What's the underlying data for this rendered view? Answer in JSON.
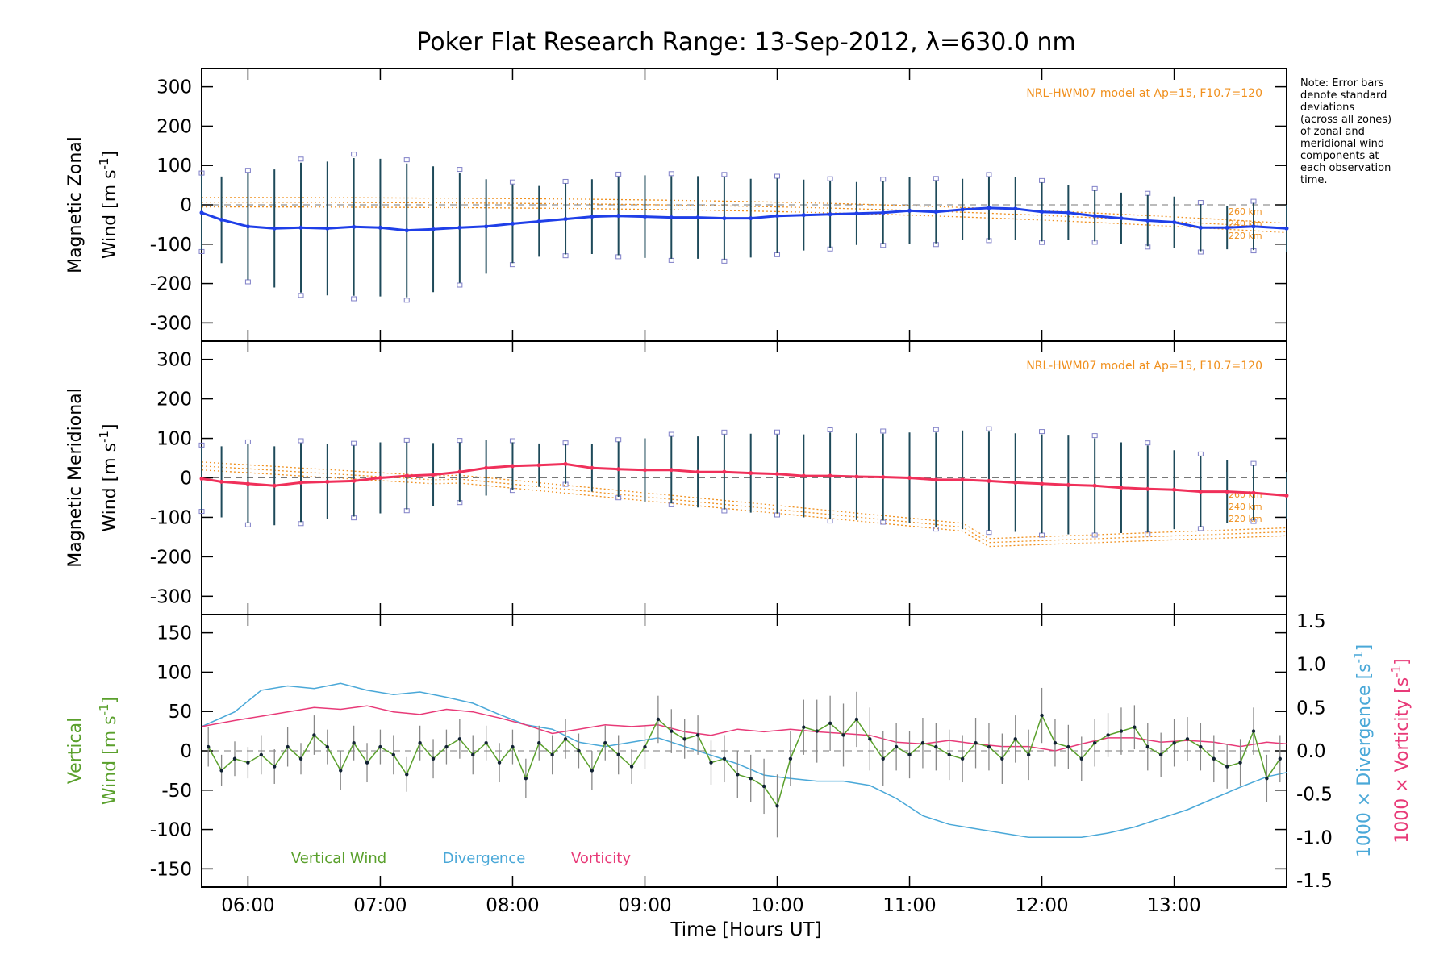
{
  "figure": {
    "title": "Poker Flat Research Range: 13-Sep-2012, λ=630.0 nm",
    "note": "Note: Error bars\ndenote standard\ndeviations\n(across all zones)\nof zonal and\nmeridional wind\ncomponents at\neach observation\ntime.",
    "xlabel": "Time [Hours UT]",
    "x_ticks": [
      "06:00",
      "07:00",
      "08:00",
      "09:00",
      "10:00",
      "11:00",
      "12:00",
      "13:00"
    ],
    "colors": {
      "zonal": "#1f3fe8",
      "meridional": "#f0305a",
      "vertical": "#5aa02c",
      "divergence": "#4aa8d8",
      "vorticity": "#e83a78",
      "model": "#f0901e",
      "errorbar": "#1e4a5a",
      "scatter": "#8080c8"
    }
  },
  "chart_data": [
    {
      "type": "line",
      "name": "zonal",
      "title": "",
      "ylabel_line1": "Magnetic Zonal",
      "ylabel_line2": "Wind [m s",
      "ylabel_sup": "-1",
      "ylabel_close": "]",
      "model_label": "NRL-HWM07 model at Ap=15, F10.7=120",
      "model_altitudes": [
        "260 km",
        "240 km",
        "220 km"
      ],
      "ylim": [
        -330,
        330
      ],
      "y_ticks": [
        300,
        200,
        100,
        0,
        -100,
        -200,
        -300
      ],
      "xlim": [
        5.65,
        13.85
      ],
      "x": [
        5.65,
        5.8,
        6.0,
        6.2,
        6.4,
        6.6,
        6.8,
        7.0,
        7.2,
        7.4,
        7.6,
        7.8,
        8.0,
        8.2,
        8.4,
        8.6,
        8.8,
        9.0,
        9.2,
        9.4,
        9.6,
        9.8,
        10.0,
        10.2,
        10.4,
        10.6,
        10.8,
        11.0,
        11.2,
        11.4,
        11.6,
        11.8,
        12.0,
        12.2,
        12.4,
        12.6,
        12.8,
        13.0,
        13.2,
        13.4,
        13.6,
        13.85
      ],
      "values": [
        -20,
        -38,
        -55,
        -60,
        -58,
        -60,
        -56,
        -58,
        -65,
        -62,
        -58,
        -55,
        -48,
        -42,
        -36,
        -30,
        -28,
        -30,
        -32,
        -32,
        -34,
        -34,
        -28,
        -26,
        -24,
        -22,
        -20,
        -15,
        -18,
        -12,
        -8,
        -10,
        -18,
        -20,
        -28,
        -34,
        -40,
        -44,
        -58,
        -58,
        -55,
        -60
      ],
      "errors": [
        95,
        110,
        135,
        150,
        165,
        170,
        175,
        175,
        170,
        160,
        140,
        120,
        100,
        90,
        90,
        95,
        100,
        105,
        105,
        105,
        105,
        100,
        95,
        90,
        85,
        80,
        80,
        85,
        80,
        78,
        80,
        80,
        75,
        70,
        65,
        65,
        65,
        65,
        60,
        55,
        60,
        60
      ]
    },
    {
      "type": "line",
      "name": "meridional",
      "title": "",
      "ylabel_line1": "Magnetic Meridional",
      "ylabel_line2": "Wind [m s",
      "ylabel_sup": "-1",
      "ylabel_close": "]",
      "model_label": "NRL-HWM07 model at Ap=15, F10.7=120",
      "model_altitudes": [
        "260 km",
        "240 km",
        "220 km"
      ],
      "ylim": [
        -330,
        330
      ],
      "y_ticks": [
        300,
        200,
        100,
        0,
        -100,
        -200,
        -300
      ],
      "xlim": [
        5.65,
        13.85
      ],
      "x": [
        5.65,
        5.8,
        6.0,
        6.2,
        6.4,
        6.6,
        6.8,
        7.0,
        7.2,
        7.4,
        7.6,
        7.8,
        8.0,
        8.2,
        8.4,
        8.6,
        8.8,
        9.0,
        9.2,
        9.4,
        9.6,
        9.8,
        10.0,
        10.2,
        10.4,
        10.6,
        10.8,
        11.0,
        11.2,
        11.4,
        11.6,
        11.8,
        12.0,
        12.2,
        12.4,
        12.6,
        12.8,
        13.0,
        13.2,
        13.4,
        13.6,
        13.85
      ],
      "values": [
        -2,
        -10,
        -15,
        -20,
        -12,
        -10,
        -8,
        0,
        5,
        8,
        15,
        25,
        30,
        32,
        35,
        25,
        22,
        20,
        20,
        15,
        15,
        12,
        10,
        5,
        5,
        3,
        2,
        0,
        -5,
        -5,
        -8,
        -12,
        -15,
        -18,
        -20,
        -25,
        -28,
        -30,
        -35,
        -35,
        -38,
        -45
      ],
      "errors": [
        80,
        90,
        100,
        100,
        100,
        95,
        90,
        90,
        85,
        80,
        75,
        70,
        60,
        55,
        50,
        60,
        70,
        80,
        85,
        90,
        95,
        100,
        100,
        105,
        110,
        110,
        110,
        115,
        120,
        125,
        125,
        125,
        125,
        125,
        120,
        115,
        110,
        100,
        90,
        80,
        70,
        60
      ]
    },
    {
      "type": "line",
      "name": "vertical",
      "title": "",
      "ylabel_line1": "Vertical",
      "ylabel_line2": "Wind [m s",
      "ylabel_sup": "-1",
      "ylabel_close": "]",
      "ylim": [
        -165,
        165
      ],
      "y_ticks": [
        150,
        100,
        50,
        0,
        -50,
        -100,
        -150
      ],
      "y2lim": [
        -1.5,
        1.5
      ],
      "y2_ticks": [
        "1.5",
        "1.0",
        "0.5",
        "0.0",
        "-0.5",
        "-1.0",
        "-1.5"
      ],
      "y2label_div": "1000 × Divergence [s",
      "y2label_vort": "1000 × Vorticity [s",
      "legend": [
        "Vertical Wind",
        "Divergence",
        "Vorticity"
      ],
      "xlim": [
        5.65,
        13.85
      ],
      "series": [
        {
          "name": "Vertical Wind",
          "x": [
            5.7,
            5.8,
            5.9,
            6.0,
            6.1,
            6.2,
            6.3,
            6.4,
            6.5,
            6.6,
            6.7,
            6.8,
            6.9,
            7.0,
            7.1,
            7.2,
            7.3,
            7.4,
            7.5,
            7.6,
            7.7,
            7.8,
            7.9,
            8.0,
            8.1,
            8.2,
            8.3,
            8.4,
            8.5,
            8.6,
            8.7,
            8.8,
            8.9,
            9.0,
            9.1,
            9.2,
            9.3,
            9.4,
            9.5,
            9.6,
            9.7,
            9.8,
            9.9,
            10.0,
            10.1,
            10.2,
            10.3,
            10.4,
            10.5,
            10.6,
            10.7,
            10.8,
            10.9,
            11.0,
            11.1,
            11.2,
            11.3,
            11.4,
            11.5,
            11.6,
            11.7,
            11.8,
            11.9,
            12.0,
            12.1,
            12.2,
            12.3,
            12.4,
            12.5,
            12.6,
            12.7,
            12.8,
            12.9,
            13.0,
            13.1,
            13.2,
            13.3,
            13.4,
            13.5,
            13.6,
            13.7,
            13.8
          ],
          "values": [
            5,
            -25,
            -10,
            -15,
            -5,
            -20,
            5,
            -10,
            20,
            5,
            -25,
            10,
            -15,
            5,
            -5,
            -30,
            10,
            -10,
            5,
            15,
            -5,
            10,
            -15,
            5,
            -35,
            10,
            -5,
            15,
            0,
            -25,
            10,
            -5,
            -20,
            5,
            40,
            25,
            15,
            20,
            -15,
            -10,
            -30,
            -35,
            -45,
            -70,
            -10,
            30,
            25,
            35,
            20,
            40,
            15,
            -10,
            5,
            -5,
            10,
            5,
            -5,
            -10,
            10,
            5,
            -10,
            15,
            -5,
            45,
            10,
            5,
            -10,
            10,
            20,
            25,
            30,
            5,
            -5,
            10,
            15,
            5,
            -10,
            -20,
            -15,
            25,
            -35,
            -10
          ],
          "errors": [
            25,
            20,
            22,
            20,
            25,
            22,
            25,
            20,
            25,
            22,
            25,
            22,
            25,
            22,
            25,
            22,
            22,
            25,
            22,
            25,
            25,
            22,
            25,
            22,
            25,
            22,
            25,
            25,
            22,
            25,
            22,
            25,
            22,
            28,
            30,
            28,
            25,
            25,
            28,
            30,
            30,
            30,
            35,
            40,
            35,
            35,
            40,
            35,
            40,
            35,
            40,
            35,
            30,
            30,
            32,
            30,
            32,
            30,
            32,
            30,
            32,
            30,
            32,
            35,
            30,
            28,
            28,
            30,
            28,
            30,
            28,
            30,
            28,
            30,
            28,
            30,
            30,
            28,
            30,
            30,
            30,
            30
          ]
        },
        {
          "name": "Divergence",
          "x": [
            5.65,
            5.9,
            6.1,
            6.3,
            6.5,
            6.7,
            6.9,
            7.1,
            7.3,
            7.5,
            7.7,
            7.9,
            8.1,
            8.3,
            8.5,
            8.7,
            8.9,
            9.1,
            9.3,
            9.5,
            9.7,
            9.9,
            10.1,
            10.3,
            10.5,
            10.7,
            10.9,
            11.1,
            11.3,
            11.5,
            11.7,
            11.9,
            12.1,
            12.3,
            12.5,
            12.7,
            12.9,
            13.1,
            13.3,
            13.5,
            13.7,
            13.85
          ],
          "values": [
            0.28,
            0.45,
            0.7,
            0.75,
            0.72,
            0.78,
            0.7,
            0.65,
            0.68,
            0.62,
            0.55,
            0.42,
            0.3,
            0.25,
            0.1,
            0.05,
            0.1,
            0.15,
            0.05,
            -0.05,
            -0.15,
            -0.28,
            -0.32,
            -0.35,
            -0.35,
            -0.4,
            -0.55,
            -0.75,
            -0.85,
            -0.9,
            -0.95,
            -1.0,
            -1.0,
            -1.0,
            -0.95,
            -0.88,
            -0.78,
            -0.68,
            -0.55,
            -0.42,
            -0.3,
            -0.25
          ]
        },
        {
          "name": "Vorticity",
          "x": [
            5.65,
            5.9,
            6.1,
            6.3,
            6.5,
            6.7,
            6.9,
            7.1,
            7.3,
            7.5,
            7.7,
            7.9,
            8.1,
            8.3,
            8.5,
            8.7,
            8.9,
            9.1,
            9.3,
            9.5,
            9.7,
            9.9,
            10.1,
            10.3,
            10.5,
            10.7,
            10.9,
            11.1,
            11.3,
            11.5,
            11.7,
            11.9,
            12.1,
            12.3,
            12.5,
            12.7,
            12.9,
            13.1,
            13.3,
            13.5,
            13.7,
            13.85
          ],
          "values": [
            0.28,
            0.35,
            0.4,
            0.45,
            0.5,
            0.48,
            0.52,
            0.45,
            0.42,
            0.48,
            0.45,
            0.38,
            0.3,
            0.2,
            0.25,
            0.3,
            0.28,
            0.3,
            0.22,
            0.18,
            0.25,
            0.22,
            0.25,
            0.22,
            0.2,
            0.18,
            0.1,
            0.08,
            0.12,
            0.08,
            0.05,
            0.05,
            0.0,
            0.08,
            0.15,
            0.15,
            0.1,
            0.12,
            0.1,
            0.05,
            0.1,
            0.08
          ]
        }
      ]
    }
  ]
}
